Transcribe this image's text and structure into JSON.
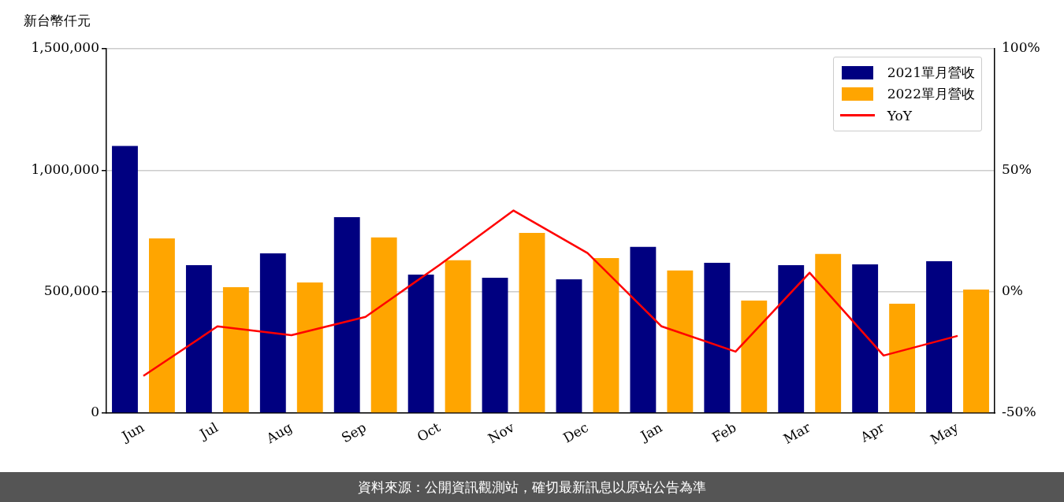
{
  "chart_data": {
    "type": "bar",
    "ylabel": "新台幣仟元",
    "categories": [
      "Jun",
      "Jul",
      "Aug",
      "Sep",
      "Oct",
      "Nov",
      "Dec",
      "Jan",
      "Feb",
      "Mar",
      "Apr",
      "May"
    ],
    "series": [
      {
        "name": "2021單月營收",
        "color": "#000080",
        "values": [
          1100000,
          609000,
          658000,
          807000,
          570000,
          557000,
          551000,
          684000,
          619000,
          609000,
          612000,
          625000
        ]
      },
      {
        "name": "2022單月營收",
        "color": "#ffa500",
        "values": [
          719000,
          518000,
          538000,
          723000,
          629000,
          742000,
          638000,
          587000,
          463000,
          655000,
          450000,
          509000
        ]
      },
      {
        "name": "YoY",
        "type": "line",
        "axis": "y2",
        "color": "#ff0000",
        "values": [
          -34.7,
          -14.3,
          -17.9,
          -10.4,
          11,
          33.4,
          15.9,
          -14.3,
          -24.7,
          7.8,
          -26.3,
          -18.2
        ]
      }
    ],
    "ylim": [
      0,
      1500000
    ],
    "yticks": [
      {
        "value": 0,
        "label": "0"
      },
      {
        "value": 500000,
        "label": "500,000"
      },
      {
        "value": 1000000,
        "label": "1,000,000"
      },
      {
        "value": 1500000,
        "label": "1,500,000"
      }
    ],
    "y2lim": [
      -50,
      100
    ],
    "y2ticks": [
      {
        "value": -50,
        "label": "-50%"
      },
      {
        "value": 0,
        "label": "0%"
      },
      {
        "value": 50,
        "label": "50%"
      },
      {
        "value": 100,
        "label": "100%"
      }
    ],
    "grid": "y",
    "legend": "top right",
    "marker": "none",
    "line_style": "solid",
    "annotations": [
      "資料來源：公開資訊觀測站，確切最新訊息以原站公告為準"
    ]
  }
}
